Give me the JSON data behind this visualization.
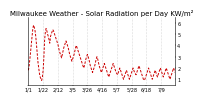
{
  "title": "Milwaukee Weather - Solar Radiation per Day KW/m²",
  "background_color": "#ffffff",
  "line_color": "#cc0000",
  "grid_color": "#bbbbbb",
  "ylim": [
    0.5,
    6.5
  ],
  "yticks": [
    1,
    2,
    3,
    4,
    5,
    6
  ],
  "ytick_labels": [
    "1",
    "2",
    "3",
    "4",
    "5",
    "6"
  ],
  "y_values": [
    1.8,
    2.2,
    2.8,
    3.5,
    4.2,
    5.0,
    5.5,
    5.8,
    5.6,
    5.3,
    4.8,
    4.0,
    3.2,
    2.5,
    2.0,
    1.5,
    1.2,
    1.0,
    0.9,
    1.2,
    1.8,
    3.0,
    4.5,
    5.2,
    5.5,
    5.3,
    5.0,
    4.8,
    4.5,
    4.2,
    4.8,
    5.0,
    5.2,
    5.4,
    5.3,
    5.1,
    4.9,
    4.7,
    4.5,
    4.3,
    4.1,
    3.8,
    3.5,
    3.3,
    3.1,
    2.9,
    3.2,
    3.5,
    3.8,
    4.0,
    4.2,
    4.4,
    4.2,
    4.0,
    3.8,
    3.5,
    3.2,
    3.0,
    2.8,
    2.6,
    2.8,
    3.0,
    3.2,
    3.5,
    3.8,
    4.0,
    3.8,
    3.6,
    3.4,
    3.2,
    3.0,
    2.8,
    2.6,
    2.4,
    2.2,
    2.0,
    2.2,
    2.5,
    2.8,
    3.0,
    3.2,
    3.0,
    2.8,
    2.5,
    2.2,
    2.0,
    1.8,
    1.6,
    1.8,
    2.0,
    2.2,
    2.5,
    2.8,
    3.0,
    2.8,
    2.5,
    2.2,
    2.0,
    1.8,
    1.6,
    1.8,
    2.0,
    2.2,
    2.4,
    2.2,
    2.0,
    1.8,
    1.6,
    1.4,
    1.2,
    1.4,
    1.6,
    1.8,
    2.0,
    2.2,
    2.4,
    2.2,
    2.0,
    1.8,
    1.6,
    1.5,
    1.4,
    1.6,
    1.8,
    2.0,
    1.8,
    1.6,
    1.4,
    1.2,
    1.0,
    1.2,
    1.4,
    1.6,
    1.8,
    1.6,
    1.4,
    1.2,
    1.0,
    1.2,
    1.4,
    1.6,
    1.8,
    2.0,
    1.8,
    1.6,
    1.5,
    1.4,
    1.6,
    1.8,
    2.0,
    2.2,
    2.0,
    1.8,
    1.6,
    1.4,
    1.2,
    1.0,
    0.9,
    1.0,
    1.2,
    1.4,
    1.6,
    1.8,
    2.0,
    1.8,
    1.6,
    1.4,
    1.2,
    1.0,
    1.2,
    1.4,
    1.6,
    1.8,
    1.6,
    1.4,
    1.2,
    1.4,
    1.6,
    1.8,
    2.0,
    1.8,
    1.6,
    1.4,
    1.2,
    1.4,
    1.6,
    1.8,
    2.0,
    1.8,
    1.6,
    1.4,
    1.2,
    1.0,
    1.2,
    1.4,
    1.6,
    1.8,
    2.0,
    1.8,
    1.6
  ],
  "n_points": 200,
  "vgrid_count": 10,
  "x_tick_labels": [
    "1/1",
    "1/22",
    "2/12",
    "3/5",
    "3/26",
    "4/16",
    "5/7",
    "5/28",
    "6/18",
    "7/9"
  ],
  "title_fontsize": 5.0,
  "tick_fontsize": 3.5
}
